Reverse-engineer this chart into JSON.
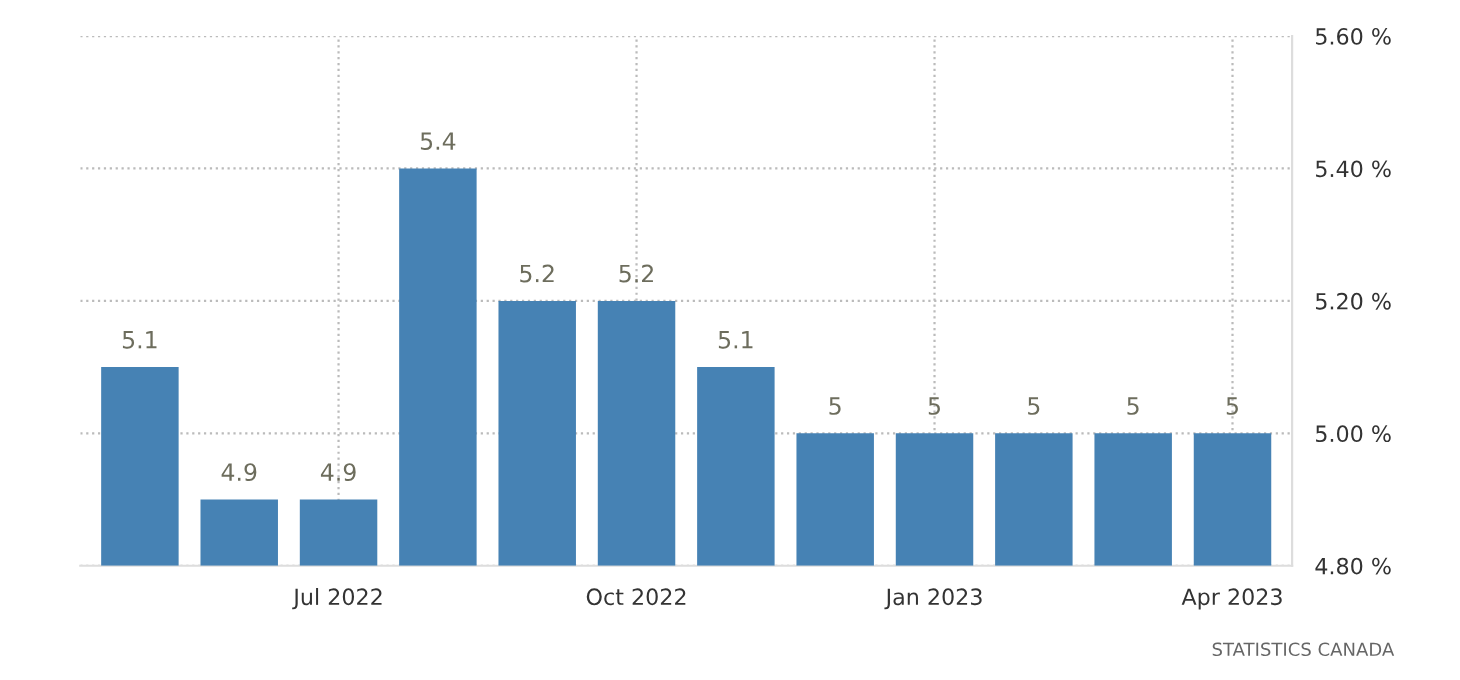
{
  "chart_data": {
    "type": "bar",
    "categories": [
      null,
      null,
      "Jul 2022",
      null,
      null,
      "Oct 2022",
      null,
      null,
      "Jan 2023",
      null,
      null,
      "Apr 2023"
    ],
    "values": [
      5.1,
      4.9,
      4.9,
      5.4,
      5.2,
      5.2,
      5.1,
      5,
      5,
      5,
      5,
      5
    ],
    "color": "#4682b4",
    "ylim": [
      4.8,
      5.6
    ],
    "yticks": [
      {
        "value": 4.8,
        "label": "4.80 %"
      },
      {
        "value": 5.0,
        "label": "5.00 %"
      },
      {
        "value": 5.2,
        "label": "5.20 %"
      },
      {
        "value": 5.4,
        "label": "5.40 %"
      },
      {
        "value": 5.6,
        "label": "5.60 %"
      }
    ],
    "grid": true,
    "data_labels": true,
    "annotations": [
      "STATISTICS CANADA"
    ]
  }
}
